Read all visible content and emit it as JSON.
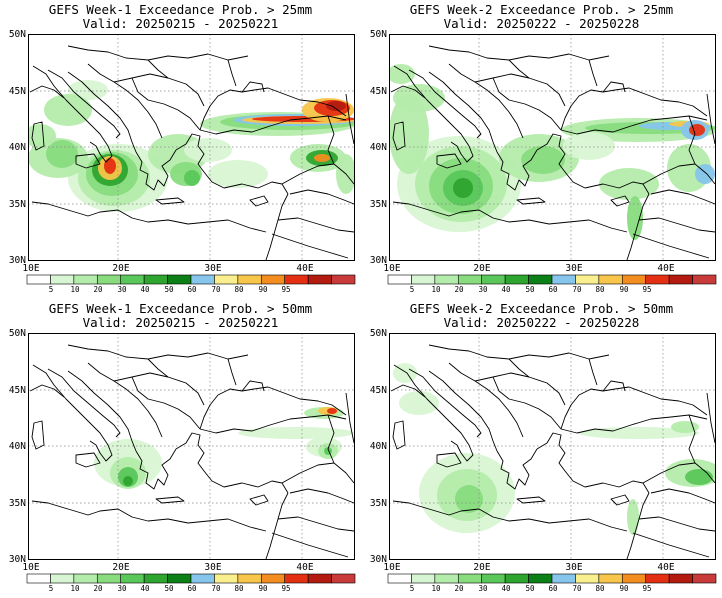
{
  "colors": [
    "#ffffff",
    "#d8f5d3",
    "#b4ecab",
    "#88dc7e",
    "#5ac75a",
    "#2ea52f",
    "#0c7f17",
    "#86c5ec",
    "#f9ef8f",
    "#f7c64a",
    "#f38d1f",
    "#e43012",
    "#b31b10",
    "#c93b3b"
  ],
  "colorbar_labels": [
    "5",
    "10",
    "20",
    "30",
    "40",
    "50",
    "60",
    "70",
    "80",
    "90",
    "95"
  ],
  "lat_labels": [
    "50N",
    "45N",
    "40N",
    "35N",
    "30N"
  ],
  "lon_labels": [
    "10E",
    "20E",
    "30E",
    "40E"
  ],
  "panels": [
    {
      "title": "GEFS Week-1 Exceedance Prob. > 25mm",
      "valid": "Valid: 20250215 - 20250221"
    },
    {
      "title": "GEFS Week-2 Exceedance Prob. > 25mm",
      "valid": "Valid: 20250222 - 20250228"
    },
    {
      "title": "GEFS Week-1 Exceedance Prob. > 50mm",
      "valid": "Valid: 20250215 - 20250221"
    },
    {
      "title": "GEFS Week-2 Exceedance Prob. > 50mm",
      "valid": "Valid: 20250222 - 20250228"
    }
  ]
}
